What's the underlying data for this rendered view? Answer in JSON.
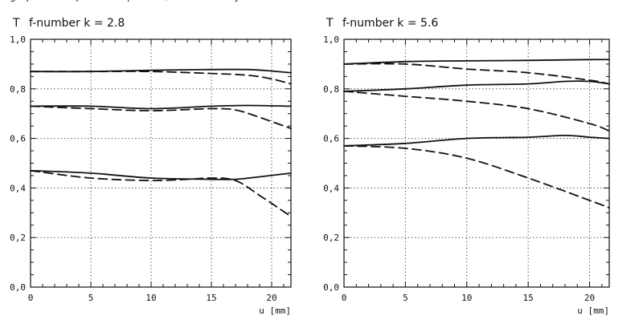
{
  "header_text": "ing up to the specified aperture, measured by",
  "chart_data": [
    {
      "type": "line",
      "title": "f-number k = 2.8",
      "ylabel": "T",
      "xlabel": "u [mm]",
      "xlim": [
        0,
        21.6
      ],
      "ylim": [
        0,
        1.0
      ],
      "xticks": [
        "0",
        "5",
        "10",
        "15",
        "20"
      ],
      "xtick_values": [
        0,
        5,
        10,
        15,
        20
      ],
      "yticks": [
        "0,0",
        "0,2",
        "0,4",
        "0,6",
        "0,8",
        "1,0"
      ],
      "ytick_values": [
        0,
        0.2,
        0.4,
        0.6,
        0.8,
        1.0
      ],
      "grid": true,
      "series": [
        {
          "style": "solid",
          "x": [
            0,
            5,
            10,
            15,
            18,
            20,
            21.6
          ],
          "y": [
            0.87,
            0.87,
            0.875,
            0.878,
            0.878,
            0.872,
            0.865
          ]
        },
        {
          "style": "dashed",
          "x": [
            0,
            5,
            10,
            15,
            18,
            20,
            21.6
          ],
          "y": [
            0.87,
            0.87,
            0.87,
            0.862,
            0.855,
            0.84,
            0.82
          ]
        },
        {
          "style": "solid",
          "x": [
            0,
            5,
            10,
            15,
            18,
            21.6
          ],
          "y": [
            0.73,
            0.73,
            0.72,
            0.73,
            0.733,
            0.73
          ]
        },
        {
          "style": "dashed",
          "x": [
            0,
            5,
            10,
            15,
            17,
            19,
            21.6
          ],
          "y": [
            0.73,
            0.72,
            0.712,
            0.72,
            0.715,
            0.685,
            0.64
          ]
        },
        {
          "style": "solid",
          "x": [
            0,
            5,
            10,
            15,
            17,
            19,
            21.6
          ],
          "y": [
            0.47,
            0.46,
            0.44,
            0.435,
            0.435,
            0.445,
            0.46
          ]
        },
        {
          "style": "dashed",
          "x": [
            0,
            5,
            10,
            13,
            15,
            17,
            19,
            21.6
          ],
          "y": [
            0.47,
            0.44,
            0.43,
            0.435,
            0.44,
            0.43,
            0.37,
            0.285
          ]
        }
      ]
    },
    {
      "type": "line",
      "title": "f-number k = 5.6",
      "ylabel": "T",
      "xlabel": "u [mm]",
      "xlim": [
        0,
        21.6
      ],
      "ylim": [
        0,
        1.0
      ],
      "xticks": [
        "0",
        "5",
        "10",
        "15",
        "20"
      ],
      "xtick_values": [
        0,
        5,
        10,
        15,
        20
      ],
      "yticks": [
        "0,0",
        "0,2",
        "0,4",
        "0,6",
        "0,8",
        "1,0"
      ],
      "ytick_values": [
        0,
        0.2,
        0.4,
        0.6,
        0.8,
        1.0
      ],
      "grid": true,
      "series": [
        {
          "style": "solid",
          "x": [
            0,
            5,
            10,
            15,
            20,
            21.6
          ],
          "y": [
            0.9,
            0.91,
            0.913,
            0.915,
            0.918,
            0.918
          ]
        },
        {
          "style": "dashed",
          "x": [
            0,
            5,
            10,
            15,
            20,
            21.6
          ],
          "y": [
            0.9,
            0.9,
            0.88,
            0.865,
            0.835,
            0.82
          ]
        },
        {
          "style": "solid",
          "x": [
            0,
            5,
            10,
            15,
            18,
            20,
            21.6
          ],
          "y": [
            0.79,
            0.8,
            0.815,
            0.82,
            0.83,
            0.83,
            0.82
          ]
        },
        {
          "style": "dashed",
          "x": [
            0,
            5,
            10,
            15,
            20,
            21.6
          ],
          "y": [
            0.79,
            0.77,
            0.75,
            0.72,
            0.66,
            0.63
          ]
        },
        {
          "style": "solid",
          "x": [
            0,
            5,
            10,
            15,
            18,
            20,
            21.6
          ],
          "y": [
            0.57,
            0.58,
            0.6,
            0.605,
            0.612,
            0.605,
            0.6
          ]
        },
        {
          "style": "dashed",
          "x": [
            0,
            5,
            10,
            15,
            20,
            21.6
          ],
          "y": [
            0.57,
            0.56,
            0.52,
            0.44,
            0.35,
            0.32
          ]
        }
      ]
    }
  ]
}
